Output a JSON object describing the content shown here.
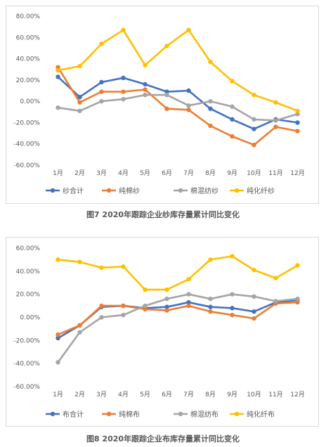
{
  "colors": {
    "s1": "#4472c4",
    "s2": "#ed7d31",
    "s3": "#a5a5a5",
    "s4": "#ffc000"
  },
  "chart_data": [
    {
      "type": "line",
      "caption": "图7 2020年跟踪企业纱库存量累计同比变化",
      "categories": [
        "1月",
        "2月",
        "3月",
        "4月",
        "5月",
        "6月",
        "7月",
        "8月",
        "9月",
        "10月",
        "11月",
        "12月"
      ],
      "yticks": [
        "80.00%",
        "60.00%",
        "40.00%",
        "20.00%",
        "0.00%",
        "-20.00%",
        "-40.00%",
        "-60.00%"
      ],
      "ylim": [
        -60,
        80
      ],
      "grid": false,
      "legend": "bottom",
      "series": [
        {
          "name": "纱合计",
          "color_key": "s1",
          "values": [
            23,
            4,
            18,
            22,
            16,
            9,
            10,
            -7,
            -17,
            -26,
            -17,
            -20
          ]
        },
        {
          "name": "纯棉纱",
          "color_key": "s2",
          "values": [
            32,
            -1,
            9,
            9,
            11,
            -7,
            -8,
            -23,
            -33,
            -41,
            -24,
            -28
          ]
        },
        {
          "name": "棉混纺纱",
          "color_key": "s3",
          "values": [
            -6,
            -9,
            0,
            2,
            6,
            6,
            -4,
            0,
            -5,
            -17,
            -18,
            -12
          ]
        },
        {
          "name": "纯化纤纱",
          "color_key": "s4",
          "values": [
            29,
            33,
            54,
            67,
            34,
            52,
            67,
            37,
            19,
            6,
            -1,
            -9
          ]
        }
      ]
    },
    {
      "type": "line",
      "caption": "图8 2020年跟踪企业布库存量累计同比变化",
      "categories": [
        "1月",
        "2月",
        "3月",
        "4月",
        "5月",
        "6月",
        "7月",
        "8月",
        "9月",
        "10月",
        "11月",
        "12月"
      ],
      "yticks": [
        "60.00%",
        "40.00%",
        "20.00%",
        "0.00%",
        "-20.00%",
        "-40.00%",
        "-60.00%"
      ],
      "ylim": [
        -60,
        60
      ],
      "grid": false,
      "legend": "bottom",
      "series": [
        {
          "name": "布合计",
          "color_key": "s1",
          "values": [
            -18,
            -7,
            9,
            10,
            8,
            9,
            13,
            9,
            8,
            5,
            13,
            15
          ]
        },
        {
          "name": "纯棉布",
          "color_key": "s2",
          "values": [
            -15,
            -7,
            10,
            10,
            7,
            6,
            10,
            5,
            2,
            -1,
            12,
            13
          ]
        },
        {
          "name": "棉混纺布",
          "color_key": "s3",
          "values": [
            -39,
            -13,
            0,
            2,
            10,
            16,
            20,
            16,
            20,
            18,
            14,
            16
          ]
        },
        {
          "name": "纯化纤布",
          "color_key": "s4",
          "values": [
            50,
            48,
            43,
            44,
            24,
            24,
            33,
            50,
            53,
            41,
            34,
            45
          ]
        }
      ]
    }
  ]
}
